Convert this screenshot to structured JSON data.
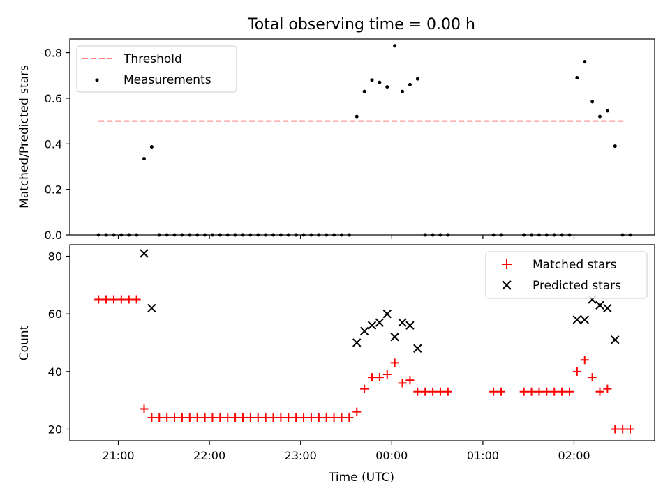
{
  "figure": {
    "title": "Total observing time = 0.00 h",
    "xlabel": "Time (UTC)",
    "xticks": [
      "21:00",
      "22:00",
      "23:00",
      "00:00",
      "01:00",
      "02:00"
    ]
  },
  "chart_data": [
    {
      "type": "scatter",
      "ylabel": "Matched/Predicted stars",
      "ylim": [
        0,
        0.86
      ],
      "yticks": [
        "0.0",
        "0.2",
        "0.4",
        "0.6",
        "0.8"
      ],
      "legend_placement": "upper left",
      "threshold": {
        "name": "Threshold",
        "value": 0.5,
        "color": "#ff7f7f",
        "x_start": "20:47",
        "x_end": "02:34"
      },
      "series": [
        {
          "name": "Measurements",
          "color": "#000000",
          "points": [
            [
              "20:47",
              0
            ],
            [
              "20:52",
              0
            ],
            [
              "20:57",
              0
            ],
            [
              "21:02",
              0
            ],
            [
              "21:07",
              0
            ],
            [
              "21:12",
              0
            ],
            [
              "21:17",
              0.335
            ],
            [
              "21:22",
              0.387
            ],
            [
              "21:27",
              0
            ],
            [
              "21:32",
              0
            ],
            [
              "21:37",
              0
            ],
            [
              "21:42",
              0
            ],
            [
              "21:47",
              0
            ],
            [
              "21:52",
              0
            ],
            [
              "21:57",
              0
            ],
            [
              "22:02",
              0
            ],
            [
              "22:07",
              0
            ],
            [
              "22:12",
              0
            ],
            [
              "22:17",
              0
            ],
            [
              "22:22",
              0
            ],
            [
              "22:27",
              0
            ],
            [
              "22:32",
              0
            ],
            [
              "22:37",
              0
            ],
            [
              "22:42",
              0
            ],
            [
              "22:47",
              0
            ],
            [
              "22:52",
              0
            ],
            [
              "22:57",
              0
            ],
            [
              "23:02",
              0
            ],
            [
              "23:07",
              0
            ],
            [
              "23:12",
              0
            ],
            [
              "23:17",
              0
            ],
            [
              "23:22",
              0
            ],
            [
              "23:27",
              0
            ],
            [
              "23:32",
              0
            ],
            [
              "23:37",
              0.52
            ],
            [
              "23:42",
              0.63
            ],
            [
              "23:47",
              0.68
            ],
            [
              "23:52",
              0.67
            ],
            [
              "23:57",
              0.65
            ],
            [
              "00:02",
              0.83
            ],
            [
              "00:07",
              0.63
            ],
            [
              "00:12",
              0.66
            ],
            [
              "00:17",
              0.685
            ],
            [
              "00:22",
              0
            ],
            [
              "00:27",
              0
            ],
            [
              "00:32",
              0
            ],
            [
              "00:37",
              0
            ],
            [
              "01:07",
              0
            ],
            [
              "01:12",
              0
            ],
            [
              "01:27",
              0
            ],
            [
              "01:32",
              0
            ],
            [
              "01:37",
              0
            ],
            [
              "01:42",
              0
            ],
            [
              "01:47",
              0
            ],
            [
              "01:52",
              0
            ],
            [
              "01:57",
              0
            ],
            [
              "02:02",
              0.69
            ],
            [
              "02:07",
              0.76
            ],
            [
              "02:12",
              0.585
            ],
            [
              "02:17",
              0.52
            ],
            [
              "02:22",
              0.545
            ],
            [
              "02:27",
              0.39
            ],
            [
              "02:32",
              0
            ],
            [
              "02:37",
              0
            ]
          ]
        }
      ]
    },
    {
      "type": "scatter",
      "ylabel": "Count",
      "ylim": [
        16,
        84
      ],
      "yticks": [
        "20",
        "40",
        "60",
        "80"
      ],
      "legend_placement": "upper right",
      "series": [
        {
          "name": "Matched stars",
          "color": "#ff0000",
          "marker": "+",
          "points": [
            [
              "20:47",
              65
            ],
            [
              "20:52",
              65
            ],
            [
              "20:57",
              65
            ],
            [
              "21:02",
              65
            ],
            [
              "21:07",
              65
            ],
            [
              "21:12",
              65
            ],
            [
              "21:17",
              27
            ],
            [
              "21:22",
              24
            ],
            [
              "21:27",
              24
            ],
            [
              "21:32",
              24
            ],
            [
              "21:37",
              24
            ],
            [
              "21:42",
              24
            ],
            [
              "21:47",
              24
            ],
            [
              "21:52",
              24
            ],
            [
              "21:57",
              24
            ],
            [
              "22:02",
              24
            ],
            [
              "22:07",
              24
            ],
            [
              "22:12",
              24
            ],
            [
              "22:17",
              24
            ],
            [
              "22:22",
              24
            ],
            [
              "22:27",
              24
            ],
            [
              "22:32",
              24
            ],
            [
              "22:37",
              24
            ],
            [
              "22:42",
              24
            ],
            [
              "22:47",
              24
            ],
            [
              "22:52",
              24
            ],
            [
              "22:57",
              24
            ],
            [
              "23:02",
              24
            ],
            [
              "23:07",
              24
            ],
            [
              "23:12",
              24
            ],
            [
              "23:17",
              24
            ],
            [
              "23:22",
              24
            ],
            [
              "23:27",
              24
            ],
            [
              "23:32",
              24
            ],
            [
              "23:37",
              26
            ],
            [
              "23:42",
              34
            ],
            [
              "23:47",
              38
            ],
            [
              "23:52",
              38
            ],
            [
              "23:57",
              39
            ],
            [
              "00:02",
              43
            ],
            [
              "00:07",
              36
            ],
            [
              "00:12",
              37
            ],
            [
              "00:17",
              33
            ],
            [
              "00:22",
              33
            ],
            [
              "00:27",
              33
            ],
            [
              "00:32",
              33
            ],
            [
              "00:37",
              33
            ],
            [
              "01:07",
              33
            ],
            [
              "01:12",
              33
            ],
            [
              "01:27",
              33
            ],
            [
              "01:32",
              33
            ],
            [
              "01:37",
              33
            ],
            [
              "01:42",
              33
            ],
            [
              "01:47",
              33
            ],
            [
              "01:52",
              33
            ],
            [
              "01:57",
              33
            ],
            [
              "02:02",
              40
            ],
            [
              "02:07",
              44
            ],
            [
              "02:12",
              38
            ],
            [
              "02:17",
              33
            ],
            [
              "02:22",
              34
            ],
            [
              "02:27",
              20
            ],
            [
              "02:32",
              20
            ],
            [
              "02:37",
              20
            ]
          ]
        },
        {
          "name": "Predicted stars",
          "color": "#000000",
          "marker": "x",
          "points": [
            [
              "21:17",
              81
            ],
            [
              "21:22",
              62
            ],
            [
              "23:37",
              50
            ],
            [
              "23:42",
              54
            ],
            [
              "23:47",
              56
            ],
            [
              "23:52",
              57
            ],
            [
              "23:57",
              60
            ],
            [
              "00:02",
              52
            ],
            [
              "00:07",
              57
            ],
            [
              "00:12",
              56
            ],
            [
              "00:17",
              48
            ],
            [
              "02:02",
              58
            ],
            [
              "02:07",
              58
            ],
            [
              "02:12",
              65
            ],
            [
              "02:17",
              63
            ],
            [
              "02:22",
              62
            ],
            [
              "02:27",
              51
            ]
          ]
        }
      ]
    }
  ]
}
